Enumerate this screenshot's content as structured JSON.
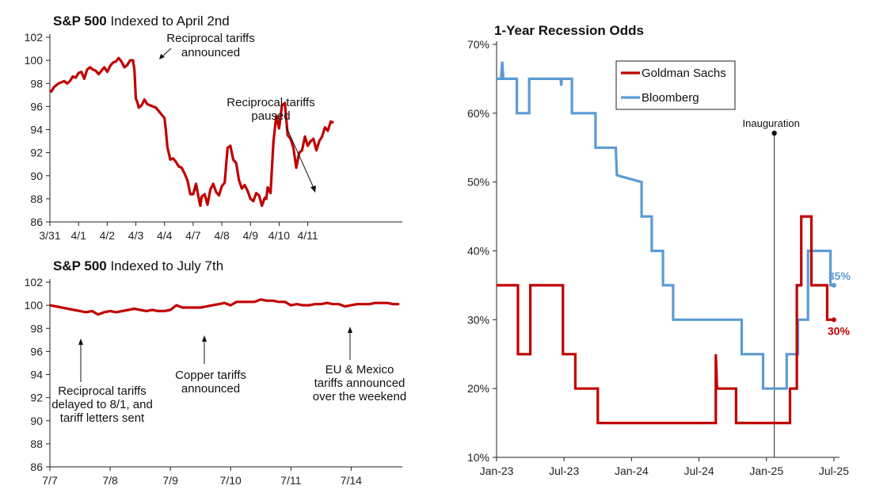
{
  "chart_data": [
    {
      "type": "line",
      "title_bold": "S&P 500",
      "title_rest": " Indexed to April 2nd",
      "ylim": [
        86,
        102
      ],
      "yticks": [
        "102",
        "100",
        "98",
        "96",
        "94",
        "92",
        "90",
        "88",
        "86"
      ],
      "xlim": [
        0,
        12.3
      ],
      "xticks": [
        {
          "x": 0,
          "label": "3/31"
        },
        {
          "x": 1,
          "label": "4/1"
        },
        {
          "x": 2,
          "label": "4/2"
        },
        {
          "x": 3,
          "label": "4/3"
        },
        {
          "x": 4,
          "label": "4/4"
        },
        {
          "x": 5,
          "label": "4/7"
        },
        {
          "x": 6,
          "label": "4/8"
        },
        {
          "x": 7,
          "label": "4/9"
        },
        {
          "x": 8,
          "label": "4/10"
        },
        {
          "x": 9,
          "label": "4/11"
        }
      ],
      "color": "#C00000",
      "series": [
        {
          "x": [
            0,
            0.05,
            0.15,
            0.3,
            0.4,
            0.5,
            0.6,
            0.7,
            0.8,
            0.9,
            1.0,
            1.1,
            1.2,
            1.3,
            1.4,
            1.5,
            1.6,
            1.7,
            1.8,
            1.9,
            2.0,
            2.1,
            2.2,
            2.3,
            2.4,
            2.5,
            2.6,
            2.7,
            2.8,
            2.9,
            2.95,
            3.0,
            3.05,
            3.1,
            3.2,
            3.3,
            3.4,
            3.5,
            3.6,
            3.7,
            3.8,
            3.9,
            4.0,
            4.05,
            4.1,
            4.2,
            4.3,
            4.4,
            4.5,
            4.6,
            4.7,
            4.8,
            4.9,
            5.0,
            5.1,
            5.2,
            5.25,
            5.3,
            5.4,
            5.5,
            5.6,
            5.7,
            5.8,
            5.9,
            6.0,
            6.1,
            6.2,
            6.3,
            6.4,
            6.5,
            6.6,
            6.7,
            6.8,
            6.9,
            7.0,
            7.05,
            7.1,
            7.2,
            7.3,
            7.4,
            7.5,
            7.55,
            7.6,
            7.7,
            7.8,
            7.9,
            8.0,
            8.1,
            8.2,
            8.3,
            8.4,
            8.5,
            8.6,
            8.7,
            8.8,
            8.9,
            9.0,
            9.1,
            9.2,
            9.3,
            9.4,
            9.5,
            9.6,
            9.7,
            9.8,
            9.9
          ],
          "values": [
            97.4,
            97.3,
            97.7,
            98.0,
            98.1,
            98.2,
            98.0,
            98.2,
            98.6,
            98.5,
            98.9,
            99.0,
            98.4,
            99.2,
            99.4,
            99.2,
            99.1,
            98.8,
            99.1,
            99.4,
            99.0,
            99.5,
            99.8,
            99.9,
            100.2,
            99.9,
            99.4,
            99.6,
            100.0,
            100.0,
            99.2,
            96.7,
            96.4,
            95.9,
            96.1,
            96.6,
            96.2,
            96.1,
            96.0,
            95.9,
            95.6,
            95.3,
            95.0,
            93.9,
            92.5,
            91.4,
            91.5,
            91.2,
            90.8,
            90.7,
            90.2,
            89.6,
            88.4,
            88.4,
            89.3,
            88.0,
            87.4,
            88.2,
            88.4,
            87.5,
            88.8,
            89.3,
            88.6,
            88.3,
            89.1,
            89.4,
            92.4,
            92.6,
            91.4,
            91.1,
            89.6,
            88.9,
            89.2,
            88.7,
            88.0,
            87.9,
            87.8,
            88.5,
            88.3,
            87.4,
            88.1,
            88.0,
            89.0,
            88.5,
            92.9,
            95.2,
            94.1,
            96.1,
            96.3,
            93.5,
            93.2,
            92.4,
            90.7,
            92.0,
            92.2,
            93.4,
            92.6,
            93.0,
            93.2,
            92.2,
            93.0,
            93.4,
            94.2,
            93.9,
            94.7,
            94.6
          ]
        }
      ],
      "annotations": [
        {
          "lines": [
            "Reciprocal tariffs",
            "announced"
          ]
        },
        {
          "lines": [
            "Reciprocal tariffs",
            "paused"
          ]
        }
      ]
    },
    {
      "type": "line",
      "title_bold": "S&P 500",
      "title_rest": " Indexed to July 7th",
      "ylim": [
        86,
        102
      ],
      "yticks": [
        "102",
        "100",
        "98",
        "96",
        "94",
        "92",
        "90",
        "88",
        "86"
      ],
      "xlim": [
        0,
        5.85
      ],
      "xticks": [
        {
          "x": 0,
          "label": "7/7"
        },
        {
          "x": 1,
          "label": "7/8"
        },
        {
          "x": 2,
          "label": "7/9"
        },
        {
          "x": 3,
          "label": "7/10"
        },
        {
          "x": 4,
          "label": "7/11"
        },
        {
          "x": 5,
          "label": "7/14"
        }
      ],
      "color": "#C00000",
      "series": [
        {
          "x": [
            0,
            0.1,
            0.2,
            0.3,
            0.4,
            0.5,
            0.6,
            0.7,
            0.8,
            0.9,
            1.0,
            1.1,
            1.2,
            1.3,
            1.4,
            1.5,
            1.6,
            1.7,
            1.8,
            1.9,
            2.0,
            2.1,
            2.2,
            2.3,
            2.4,
            2.5,
            2.6,
            2.7,
            2.8,
            2.9,
            3.0,
            3.1,
            3.2,
            3.3,
            3.4,
            3.5,
            3.6,
            3.7,
            3.8,
            3.9,
            4.0,
            4.1,
            4.2,
            4.3,
            4.4,
            4.5,
            4.6,
            4.7,
            4.8,
            4.9,
            5.0,
            5.1,
            5.2,
            5.3,
            5.4,
            5.5,
            5.6,
            5.7,
            5.8
          ],
          "values": [
            100.0,
            99.9,
            99.8,
            99.7,
            99.6,
            99.5,
            99.4,
            99.5,
            99.2,
            99.4,
            99.5,
            99.4,
            99.5,
            99.6,
            99.7,
            99.6,
            99.5,
            99.6,
            99.5,
            99.5,
            99.6,
            100.0,
            99.8,
            99.8,
            99.8,
            99.8,
            99.9,
            100.0,
            100.1,
            100.2,
            100.0,
            100.3,
            100.3,
            100.3,
            100.3,
            100.5,
            100.4,
            100.4,
            100.3,
            100.3,
            100.0,
            100.1,
            100.0,
            100.0,
            100.1,
            100.1,
            100.2,
            100.1,
            100.1,
            99.9,
            100.0,
            100.1,
            100.1,
            100.1,
            100.2,
            100.2,
            100.2,
            100.1,
            100.1
          ]
        }
      ],
      "annotations": [
        {
          "lines": [
            "Reciprocal tariffs",
            "delayed to 8/1, and",
            "tariff letters sent"
          ]
        },
        {
          "lines": [
            "Copper tariffs",
            "announced"
          ]
        },
        {
          "lines": [
            "EU & Mexico",
            "tariffs announced",
            "over the weekend"
          ]
        }
      ]
    },
    {
      "type": "line",
      "title": "1-Year Recession Odds",
      "ylim": [
        10,
        70
      ],
      "yticks": [
        "70%",
        "60%",
        "50%",
        "40%",
        "30%",
        "20%",
        "10%"
      ],
      "xlim": [
        0,
        30.5
      ],
      "xticks": [
        {
          "x": 0,
          "label": "Jan-23"
        },
        {
          "x": 6,
          "label": "Jul-23"
        },
        {
          "x": 12,
          "label": "Jan-24"
        },
        {
          "x": 18,
          "label": "Jul-24"
        },
        {
          "x": 24,
          "label": "Jan-25"
        },
        {
          "x": 30,
          "label": "Jul-25"
        }
      ],
      "legend_position": "top-center",
      "series": [
        {
          "name": "Goldman Sachs",
          "color": "#C00000",
          "x": [
            0,
            1.9,
            1.9,
            3.0,
            3.0,
            5.9,
            5.9,
            7.0,
            7.0,
            9.0,
            9.0,
            19.5,
            19.5,
            19.6,
            19.6,
            21.3,
            21.3,
            26.1,
            26.1,
            26.7,
            26.7,
            27.1,
            27.1,
            28.0,
            28.0,
            28.7,
            28.7,
            29.4,
            29.4,
            30.0
          ],
          "values": [
            35,
            35,
            25,
            25,
            35,
            35,
            25,
            25,
            20,
            20,
            15,
            15,
            25,
            20,
            20,
            20,
            15,
            15,
            20,
            20,
            35,
            35,
            45,
            45,
            35,
            35,
            35,
            35,
            30,
            30
          ],
          "end_label": "30%"
        },
        {
          "name": "Bloomberg",
          "color": "#5B9BD5",
          "x": [
            0,
            0.4,
            0.5,
            0.6,
            1.8,
            1.8,
            2.9,
            2.9,
            5.7,
            5.75,
            5.8,
            6.7,
            6.7,
            8.8,
            8.8,
            10.6,
            10.7,
            12.9,
            12.9,
            13.8,
            13.8,
            14.8,
            14.8,
            15.7,
            15.7,
            21.8,
            21.8,
            23.7,
            23.7,
            25.8,
            25.8,
            26.8,
            26.8,
            27.7,
            27.7,
            29.7,
            29.7,
            30.0
          ],
          "values": [
            65,
            65,
            67.5,
            65,
            65,
            60,
            60,
            65,
            65,
            64,
            65,
            65,
            60,
            60,
            55,
            55,
            51,
            50,
            45,
            45,
            40,
            40,
            35,
            35,
            30,
            30,
            25,
            25,
            20,
            20,
            25,
            25,
            30,
            30,
            40,
            40,
            35,
            35
          ],
          "end_label": "35%"
        }
      ],
      "annotations": [
        {
          "text": "Inauguration",
          "x": 24.7
        }
      ]
    }
  ]
}
